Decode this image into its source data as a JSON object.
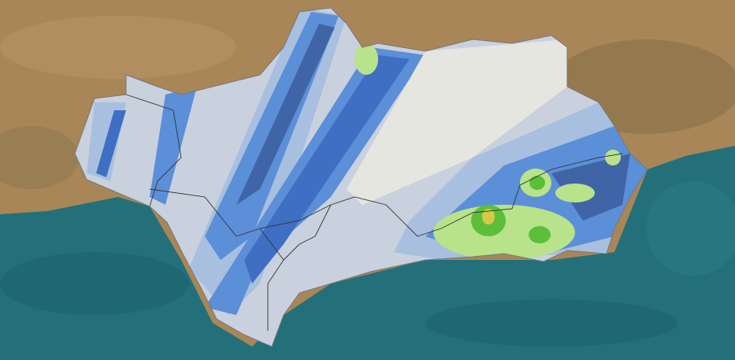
{
  "map": {
    "basemap": "satellite",
    "colors": {
      "land": "#a98657",
      "land_dark": "#7d6a45",
      "sea": "#23707a",
      "sea_dark": "#1a5a64",
      "region_base": "#c9d1de",
      "light_blue": "#a9bfe0",
      "mid_blue": "#5b8fd8",
      "dark_blue": "#3f6fc2",
      "navy": "#3a5a9a",
      "pale": "#e6e6e0",
      "light_green": "#b8e38a",
      "green": "#5cbf3a",
      "yellow": "#d8c84a",
      "border": "#333333"
    }
  }
}
